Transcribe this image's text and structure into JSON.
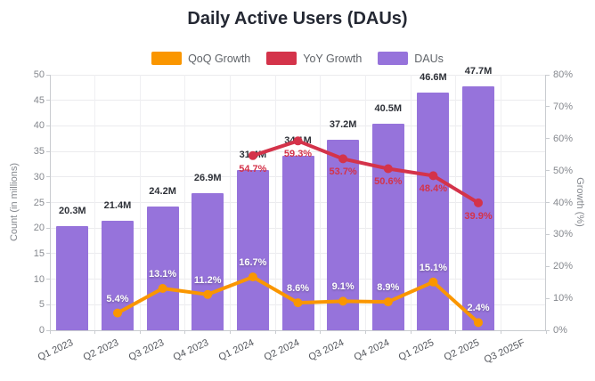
{
  "title": "Daily Active Users (DAUs)",
  "legend": {
    "items": [
      {
        "label": "QoQ Growth",
        "color": "#FA9600"
      },
      {
        "label": "YoY Growth",
        "color": "#D4334A"
      },
      {
        "label": "DAUs",
        "color": "#9673DB"
      }
    ]
  },
  "chart_data": {
    "type": "combo-bar-line",
    "title": "Daily Active Users (DAUs)",
    "categories": [
      "Q1 2023",
      "Q2 2023",
      "Q3 2023",
      "Q4 2023",
      "Q1 2024",
      "Q2 2024",
      "Q3 2024",
      "Q4 2024",
      "Q1 2025",
      "Q2 2025",
      "Q3 2025F"
    ],
    "left_axis": {
      "title": "Count (in millions)",
      "min": 0,
      "max": 50,
      "ticks": [
        0,
        5,
        10,
        15,
        20,
        25,
        30,
        35,
        40,
        45,
        50
      ],
      "suffix": ""
    },
    "right_axis": {
      "title": "Growth (%)",
      "min": 0,
      "max": 80,
      "ticks": [
        0,
        10,
        20,
        30,
        40,
        50,
        60,
        70,
        80
      ],
      "suffix": "%"
    },
    "grid": true,
    "legend_position": "top",
    "series": [
      {
        "name": "DAUs",
        "type": "bar",
        "axis": "left",
        "color": "#9673DB",
        "values": [
          20.3,
          21.4,
          24.2,
          26.9,
          31.4,
          34.1,
          37.2,
          40.5,
          46.6,
          47.7,
          null
        ],
        "labels": [
          "20.3M",
          "21.4M",
          "24.2M",
          "26.9M",
          "31.4M",
          "34.1M",
          "37.2M",
          "40.5M",
          "46.6M",
          "47.7M",
          null
        ]
      },
      {
        "name": "QoQ Growth",
        "type": "line",
        "axis": "right",
        "color": "#FA9600",
        "values": [
          null,
          5.4,
          13.1,
          11.2,
          16.7,
          8.6,
          9.1,
          8.9,
          15.1,
          2.4,
          null
        ],
        "labels": [
          null,
          "5.4%",
          "13.1%",
          "11.2%",
          "16.7%",
          "8.6%",
          "9.1%",
          "8.9%",
          "15.1%",
          "2.4%",
          null
        ],
        "label_position": "above",
        "label_color": "#ffffff"
      },
      {
        "name": "YoY Growth",
        "type": "line",
        "axis": "right",
        "color": "#D4334A",
        "values": [
          null,
          null,
          null,
          null,
          54.7,
          59.3,
          53.7,
          50.6,
          48.4,
          39.9,
          null
        ],
        "labels": [
          null,
          null,
          null,
          null,
          "54.7%",
          "59.3%",
          "53.7%",
          "50.6%",
          "48.4%",
          "39.9%",
          null
        ],
        "label_position": "below",
        "label_color": "#D4334A"
      }
    ]
  }
}
